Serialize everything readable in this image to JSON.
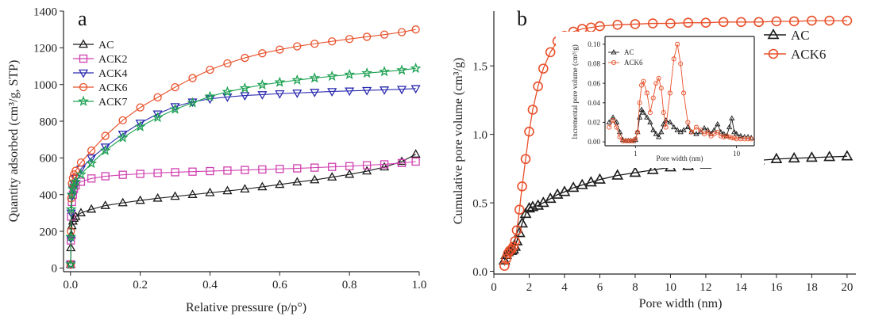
{
  "colors": {
    "AC": "#1a1a1a",
    "ACK2": "#d040b0",
    "ACK4": "#2a2ab0",
    "ACK6": "#e8502a",
    "ACK7": "#1aa050"
  },
  "chart_data": [
    {
      "panel": "a",
      "type": "line",
      "title": "",
      "xlabel": "Relative pressure (p/p°)",
      "ylabel": "Quantity adsorbed (cm³/g, STP)",
      "xlim": [
        -0.02,
        1.0
      ],
      "ylim": [
        -20,
        1400
      ],
      "xticks": [
        "0.0",
        "0.2",
        "0.4",
        "0.6",
        "0.8",
        "1.0"
      ],
      "yticks": [
        "0",
        "200",
        "400",
        "600",
        "800",
        "1000",
        "1200",
        "1400"
      ],
      "legend": [
        "AC",
        "ACK2",
        "ACK4",
        "ACK6",
        "ACK7"
      ],
      "series": [
        {
          "name": "AC",
          "marker": "triangle-up",
          "x": [
            0.0005,
            0.001,
            0.002,
            0.004,
            0.007,
            0.01,
            0.015,
            0.03,
            0.06,
            0.1,
            0.15,
            0.2,
            0.25,
            0.3,
            0.35,
            0.4,
            0.45,
            0.5,
            0.55,
            0.6,
            0.65,
            0.7,
            0.75,
            0.8,
            0.85,
            0.9,
            0.95,
            0.99
          ],
          "y": [
            20,
            110,
            180,
            230,
            255,
            270,
            280,
            300,
            320,
            340,
            355,
            368,
            380,
            390,
            400,
            410,
            420,
            430,
            442,
            455,
            468,
            480,
            495,
            510,
            528,
            550,
            580,
            620
          ]
        },
        {
          "name": "ACK2",
          "marker": "square",
          "x": [
            0.0005,
            0.001,
            0.002,
            0.004,
            0.007,
            0.01,
            0.015,
            0.03,
            0.06,
            0.1,
            0.15,
            0.2,
            0.25,
            0.3,
            0.35,
            0.4,
            0.45,
            0.5,
            0.55,
            0.6,
            0.65,
            0.7,
            0.75,
            0.8,
            0.85,
            0.9,
            0.95,
            0.99
          ],
          "y": [
            20,
            150,
            280,
            360,
            400,
            430,
            450,
            470,
            488,
            500,
            508,
            513,
            518,
            522,
            525,
            528,
            531,
            534,
            537,
            540,
            543,
            547,
            551,
            555,
            560,
            565,
            572,
            580
          ]
        },
        {
          "name": "ACK4",
          "marker": "triangle-down",
          "x": [
            0.0005,
            0.001,
            0.002,
            0.004,
            0.007,
            0.01,
            0.015,
            0.03,
            0.06,
            0.1,
            0.15,
            0.2,
            0.25,
            0.3,
            0.35,
            0.4,
            0.45,
            0.5,
            0.55,
            0.6,
            0.65,
            0.7,
            0.75,
            0.8,
            0.85,
            0.9,
            0.95,
            0.99
          ],
          "y": [
            20,
            160,
            300,
            390,
            430,
            460,
            490,
            540,
            600,
            660,
            730,
            790,
            840,
            880,
            905,
            922,
            932,
            940,
            945,
            950,
            954,
            958,
            962,
            965,
            968,
            971,
            974,
            978
          ]
        },
        {
          "name": "ACK6",
          "marker": "circle",
          "x": [
            0.0005,
            0.001,
            0.002,
            0.004,
            0.007,
            0.01,
            0.015,
            0.03,
            0.06,
            0.1,
            0.15,
            0.2,
            0.25,
            0.3,
            0.35,
            0.4,
            0.45,
            0.5,
            0.55,
            0.6,
            0.65,
            0.7,
            0.75,
            0.8,
            0.85,
            0.9,
            0.95,
            0.99
          ],
          "y": [
            20,
            200,
            380,
            460,
            490,
            510,
            530,
            575,
            640,
            720,
            805,
            875,
            930,
            985,
            1035,
            1080,
            1115,
            1145,
            1170,
            1190,
            1208,
            1222,
            1235,
            1248,
            1260,
            1272,
            1285,
            1300
          ]
        },
        {
          "name": "ACK7",
          "marker": "star",
          "x": [
            0.0005,
            0.001,
            0.002,
            0.004,
            0.007,
            0.01,
            0.015,
            0.03,
            0.06,
            0.1,
            0.15,
            0.2,
            0.25,
            0.3,
            0.35,
            0.4,
            0.45,
            0.5,
            0.55,
            0.6,
            0.65,
            0.7,
            0.75,
            0.8,
            0.85,
            0.9,
            0.95,
            0.99
          ],
          "y": [
            20,
            170,
            320,
            400,
            430,
            450,
            470,
            510,
            570,
            640,
            710,
            770,
            820,
            865,
            900,
            935,
            960,
            980,
            998,
            1012,
            1024,
            1035,
            1045,
            1054,
            1062,
            1070,
            1078,
            1088
          ]
        }
      ]
    },
    {
      "panel": "b",
      "type": "line",
      "title": "",
      "xlabel": "Pore width (nm)",
      "ylabel": "Cumulative pore volume (cm³/g)",
      "xlim": [
        0,
        20.5
      ],
      "ylim": [
        -0.02,
        1.9
      ],
      "xticks": [
        "0",
        "2",
        "4",
        "6",
        "8",
        "10",
        "12",
        "14",
        "16",
        "18",
        "20"
      ],
      "yticks": [
        "0.0",
        "0.5",
        "1.0",
        "1.5"
      ],
      "legend": [
        "AC",
        "ACK6"
      ],
      "series": [
        {
          "name": "AC",
          "marker": "triangle-up",
          "x": [
            0.6,
            0.7,
            0.8,
            0.9,
            1.0,
            1.1,
            1.2,
            1.3,
            1.45,
            1.6,
            1.8,
            2.0,
            2.2,
            2.5,
            2.8,
            3.2,
            3.6,
            4.0,
            4.5,
            5.0,
            5.5,
            6.0,
            7.0,
            8.0,
            9.0,
            10.0,
            11.0,
            12.0,
            13.0,
            14.0,
            15.0,
            16.0,
            17.0,
            18.0,
            19.0,
            20.0
          ],
          "y": [
            0.08,
            0.12,
            0.14,
            0.15,
            0.15,
            0.16,
            0.18,
            0.22,
            0.28,
            0.35,
            0.42,
            0.46,
            0.47,
            0.48,
            0.5,
            0.53,
            0.56,
            0.58,
            0.61,
            0.63,
            0.65,
            0.67,
            0.7,
            0.72,
            0.74,
            0.76,
            0.77,
            0.78,
            0.79,
            0.8,
            0.81,
            0.82,
            0.825,
            0.83,
            0.835,
            0.84
          ]
        },
        {
          "name": "ACK6",
          "marker": "circle",
          "x": [
            0.6,
            0.7,
            0.8,
            0.9,
            1.0,
            1.1,
            1.2,
            1.3,
            1.45,
            1.6,
            1.8,
            2.0,
            2.2,
            2.5,
            2.8,
            3.2,
            3.6,
            4.0,
            4.5,
            5.0,
            5.5,
            6.0,
            7.0,
            8.0,
            9.0,
            10.0,
            11.0,
            12.0,
            13.0,
            14.0,
            15.0,
            16.0,
            17.0,
            18.0,
            19.0,
            20.0
          ],
          "y": [
            0.04,
            0.09,
            0.13,
            0.15,
            0.16,
            0.18,
            0.22,
            0.3,
            0.45,
            0.62,
            0.82,
            1.02,
            1.18,
            1.35,
            1.48,
            1.6,
            1.68,
            1.72,
            1.75,
            1.77,
            1.78,
            1.79,
            1.8,
            1.805,
            1.81,
            1.81,
            1.815,
            1.815,
            1.82,
            1.82,
            1.82,
            1.825,
            1.825,
            1.83,
            1.83,
            1.83
          ]
        }
      ]
    },
    {
      "panel": "b-inset",
      "type": "line",
      "title": "",
      "xlabel": "Pore width (nm)",
      "ylabel": "Incremental pore volume (cm³/g)",
      "xscale": "log",
      "xlim": [
        0.5,
        15
      ],
      "ylim": [
        -0.004,
        0.108
      ],
      "xticks": [
        "1",
        "10"
      ],
      "yticks": [
        "0.00",
        "0.02",
        "0.04",
        "0.06",
        "0.08",
        "0.10"
      ],
      "legend": [
        "AC",
        "ACK6"
      ],
      "series": [
        {
          "name": "AC",
          "marker": "triangle-up",
          "x": [
            0.55,
            0.6,
            0.65,
            0.7,
            0.75,
            0.8,
            0.85,
            0.9,
            0.95,
            1.0,
            1.05,
            1.1,
            1.15,
            1.2,
            1.3,
            1.4,
            1.5,
            1.6,
            1.7,
            1.8,
            1.9,
            2.0,
            2.2,
            2.4,
            2.6,
            2.8,
            3.0,
            3.3,
            3.6,
            4.0,
            4.4,
            4.8,
            5.2,
            5.6,
            6.0,
            6.5,
            7.0,
            7.5,
            8.0,
            8.5,
            9.0,
            9.5,
            10.0,
            11.0,
            12.0,
            13.0,
            14.0
          ],
          "y": [
            0.02,
            0.025,
            0.02,
            0.01,
            0.002,
            0.001,
            0.001,
            0.001,
            0.001,
            0.002,
            0.01,
            0.025,
            0.033,
            0.03,
            0.025,
            0.02,
            0.012,
            0.008,
            0.005,
            0.01,
            0.018,
            0.022,
            0.02,
            0.015,
            0.012,
            0.01,
            0.012,
            0.015,
            0.01,
            0.008,
            0.01,
            0.014,
            0.012,
            0.008,
            0.012,
            0.018,
            0.01,
            0.008,
            0.006,
            0.015,
            0.024,
            0.01,
            0.008,
            0.006,
            0.005,
            0.005,
            0.004
          ]
        },
        {
          "name": "ACK6",
          "marker": "circle",
          "x": [
            0.55,
            0.6,
            0.65,
            0.7,
            0.75,
            0.8,
            0.85,
            0.9,
            0.95,
            1.0,
            1.05,
            1.1,
            1.15,
            1.2,
            1.3,
            1.4,
            1.5,
            1.6,
            1.7,
            1.8,
            1.9,
            2.0,
            2.2,
            2.4,
            2.6,
            2.8,
            3.0,
            3.3,
            3.6,
            4.0,
            4.4,
            4.8,
            5.2,
            5.6,
            6.0,
            6.5,
            7.0,
            7.5,
            8.0,
            8.5,
            9.0,
            9.5,
            10.0,
            11.0,
            12.0,
            13.0,
            14.0
          ],
          "y": [
            0.015,
            0.022,
            0.015,
            0.005,
            0.001,
            0.001,
            0.001,
            0.001,
            0.001,
            0.003,
            0.01,
            0.04,
            0.058,
            0.062,
            0.05,
            0.03,
            0.045,
            0.06,
            0.065,
            0.055,
            0.03,
            0.015,
            0.05,
            0.085,
            0.1,
            0.08,
            0.05,
            0.02,
            0.01,
            0.015,
            0.012,
            0.008,
            0.01,
            0.006,
            0.008,
            0.01,
            0.006,
            0.005,
            0.006,
            0.005,
            0.004,
            0.004,
            0.003,
            0.003,
            0.003,
            0.003,
            0.003
          ]
        }
      ]
    }
  ]
}
